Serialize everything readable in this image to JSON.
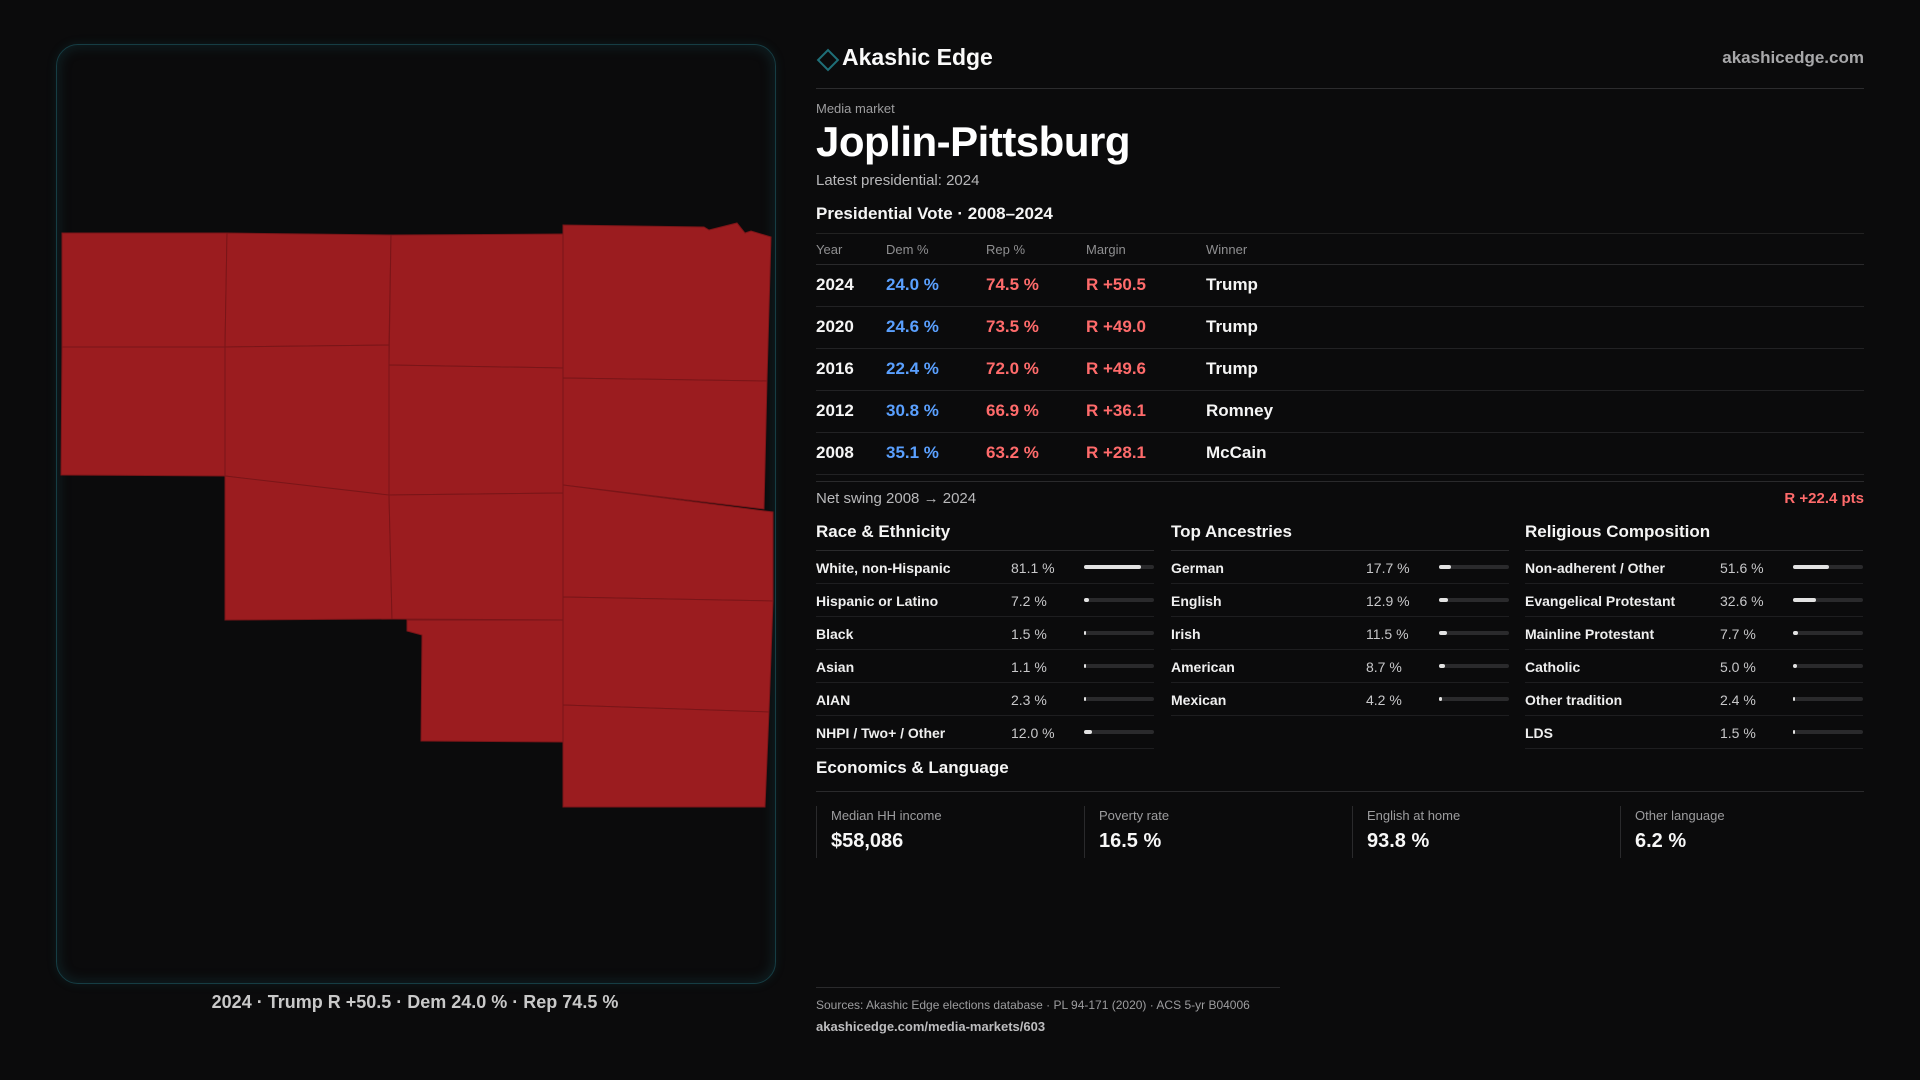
{
  "brand": {
    "name": "Akashic Edge",
    "url": "akashicedge.com",
    "accent": "#1f6f78"
  },
  "market": {
    "eyebrow": "Media market",
    "name": "Joplin-Pittsburg",
    "latest": "Latest presidential: 2024"
  },
  "map": {
    "caption": "2024 · Trump R +50.5 · Dem 24.0 % · Rep 74.5 %",
    "fill_color": "#9b1c1f"
  },
  "vote": {
    "heading": "Presidential Vote · 2008–2024",
    "columns": [
      "Year",
      "Dem %",
      "Rep %",
      "Margin",
      "Winner"
    ],
    "rows": [
      {
        "year": "2024",
        "dem": "24.0 %",
        "rep": "74.5 %",
        "margin": "R +50.5",
        "winner": "Trump"
      },
      {
        "year": "2020",
        "dem": "24.6 %",
        "rep": "73.5 %",
        "margin": "R +49.0",
        "winner": "Trump"
      },
      {
        "year": "2016",
        "dem": "22.4 %",
        "rep": "72.0 %",
        "margin": "R +49.6",
        "winner": "Trump"
      },
      {
        "year": "2012",
        "dem": "30.8 %",
        "rep": "66.9 %",
        "margin": "R +36.1",
        "winner": "Romney"
      },
      {
        "year": "2008",
        "dem": "35.1 %",
        "rep": "63.2 %",
        "margin": "R +28.1",
        "winner": "McCain"
      }
    ],
    "swing_label": "Net swing 2008 → 2024",
    "swing_value": "R +22.4 pts"
  },
  "demographics": {
    "race": {
      "heading": "Race & Ethnicity",
      "items": [
        {
          "label": "White, non-Hispanic",
          "pct": "81.1 %",
          "value": 81.1
        },
        {
          "label": "Hispanic or Latino",
          "pct": "7.2 %",
          "value": 7.2
        },
        {
          "label": "Black",
          "pct": "1.5 %",
          "value": 1.5
        },
        {
          "label": "Asian",
          "pct": "1.1 %",
          "value": 1.1
        },
        {
          "label": "AIAN",
          "pct": "2.3 %",
          "value": 2.3
        },
        {
          "label": "NHPI / Two+ / Other",
          "pct": "12.0 %",
          "value": 12.0
        }
      ]
    },
    "ancestry": {
      "heading": "Top Ancestries",
      "items": [
        {
          "label": "German",
          "pct": "17.7 %",
          "value": 17.7
        },
        {
          "label": "English",
          "pct": "12.9 %",
          "value": 12.9
        },
        {
          "label": "Irish",
          "pct": "11.5 %",
          "value": 11.5
        },
        {
          "label": "American",
          "pct": "8.7 %",
          "value": 8.7
        },
        {
          "label": "Mexican",
          "pct": "4.2 %",
          "value": 4.2
        }
      ]
    },
    "religion": {
      "heading": "Religious Composition",
      "items": [
        {
          "label": "Non-adherent / Other",
          "pct": "51.6 %",
          "value": 51.6
        },
        {
          "label": "Evangelical Protestant",
          "pct": "32.6 %",
          "value": 32.6
        },
        {
          "label": "Mainline Protestant",
          "pct": "7.7 %",
          "value": 7.7
        },
        {
          "label": "Catholic",
          "pct": "5.0 %",
          "value": 5.0
        },
        {
          "label": "Other tradition",
          "pct": "2.4 %",
          "value": 2.4
        },
        {
          "label": "LDS",
          "pct": "1.5 %",
          "value": 1.5
        }
      ]
    }
  },
  "economics": {
    "heading": "Economics & Language",
    "stats": [
      {
        "label": "Median HH income",
        "value": "$58,086"
      },
      {
        "label": "Poverty rate",
        "value": "16.5 %"
      },
      {
        "label": "English at home",
        "value": "93.8 %"
      },
      {
        "label": "Other language",
        "value": "6.2 %"
      }
    ]
  },
  "sources": {
    "line": "Sources: Akashic Edge elections database · PL 94-171 (2020) · ACS 5-yr B04006",
    "link": "akashicedge.com/media-markets/603"
  },
  "colors": {
    "dem": "#5aa0ff",
    "rep": "#ff6b6b"
  }
}
